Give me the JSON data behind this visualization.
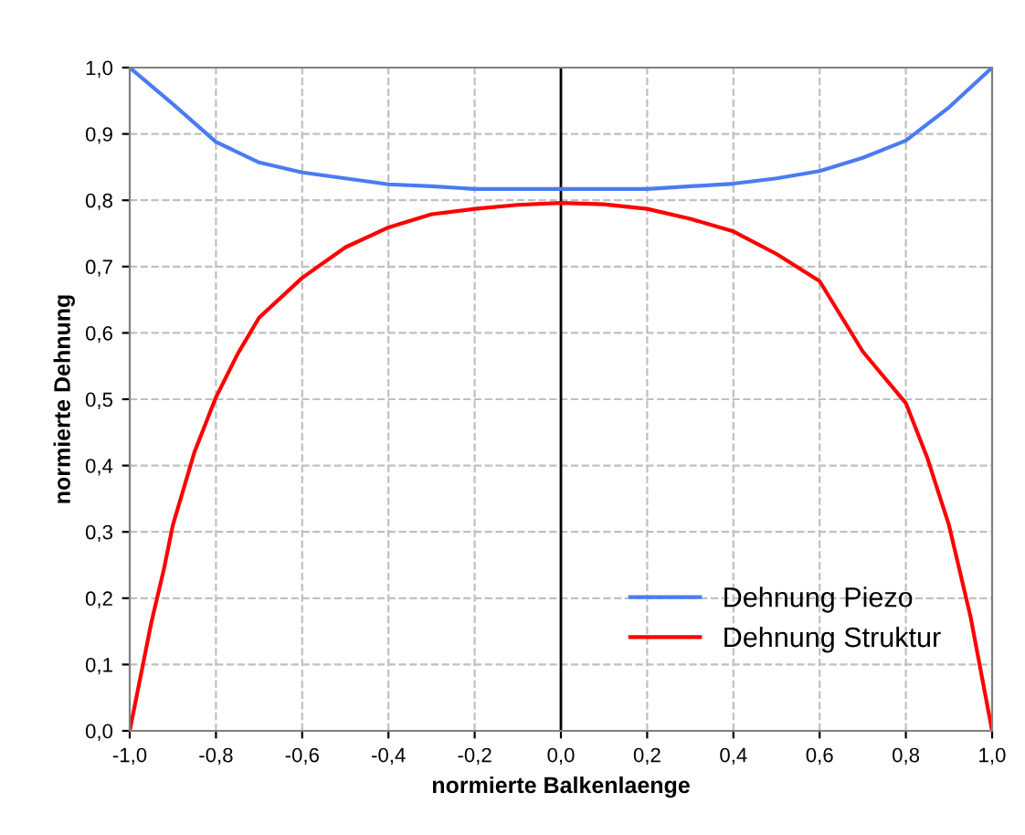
{
  "chart_data": {
    "type": "line",
    "xlabel": "normierte Balkenlaenge",
    "ylabel": "normierte Dehnung",
    "xlim": [
      -1,
      1
    ],
    "ylim": [
      0,
      1
    ],
    "xticks": [
      {
        "value": -1,
        "label": "-1,0"
      },
      {
        "value": -0.8,
        "label": "-0,8"
      },
      {
        "value": -0.6,
        "label": "-0,6"
      },
      {
        "value": -0.4,
        "label": "-0,4"
      },
      {
        "value": -0.2,
        "label": "-0,2"
      },
      {
        "value": 0,
        "label": "0,0"
      },
      {
        "value": 0.2,
        "label": "0,2"
      },
      {
        "value": 0.4,
        "label": "0,4"
      },
      {
        "value": 0.6,
        "label": "0,6"
      },
      {
        "value": 0.8,
        "label": "0,8"
      },
      {
        "value": 1,
        "label": "1,0"
      }
    ],
    "yticks": [
      {
        "value": 0,
        "label": "0,0"
      },
      {
        "value": 0.1,
        "label": "0,1"
      },
      {
        "value": 0.2,
        "label": "0,2"
      },
      {
        "value": 0.3,
        "label": "0,3"
      },
      {
        "value": 0.4,
        "label": "0,4"
      },
      {
        "value": 0.5,
        "label": "0,5"
      },
      {
        "value": 0.6,
        "label": "0,6"
      },
      {
        "value": 0.7,
        "label": "0,7"
      },
      {
        "value": 0.8,
        "label": "0,8"
      },
      {
        "value": 0.9,
        "label": "0,9"
      },
      {
        "value": 1,
        "label": "1,0"
      }
    ],
    "grid": true,
    "legend": "bottom right",
    "line_style": "solid",
    "marker": "none",
    "ref_lines": [
      {
        "axis": "x",
        "value": 0,
        "color": "#000000"
      }
    ],
    "series": [
      {
        "name": "Dehnung Piezo",
        "color": "#4a7cf0",
        "x": [
          -1,
          -0.9,
          -0.8,
          -0.7,
          -0.6,
          -0.5,
          -0.4,
          -0.3,
          -0.2,
          -0.1,
          0,
          0.2,
          0.4,
          0.5,
          0.6,
          0.7,
          0.8,
          0.9,
          1
        ],
        "values": [
          1.0,
          0.945,
          0.888,
          0.857,
          0.842,
          0.833,
          0.824,
          0.821,
          0.817,
          0.817,
          0.817,
          0.817,
          0.825,
          0.833,
          0.844,
          0.864,
          0.89,
          0.94,
          1.0
        ]
      },
      {
        "name": "Dehnung Struktur",
        "color": "#ff0000",
        "x": [
          -1,
          -0.95,
          -0.92,
          -0.9,
          -0.85,
          -0.8,
          -0.75,
          -0.7,
          -0.6,
          -0.5,
          -0.4,
          -0.3,
          -0.2,
          -0.1,
          0,
          0.1,
          0.2,
          0.3,
          0.4,
          0.5,
          0.6,
          0.7,
          0.8,
          0.85,
          0.9,
          0.95,
          1
        ],
        "values": [
          0,
          0.163,
          0.246,
          0.31,
          0.42,
          0.503,
          0.568,
          0.623,
          0.683,
          0.729,
          0.759,
          0.779,
          0.787,
          0.793,
          0.796,
          0.794,
          0.787,
          0.772,
          0.753,
          0.719,
          0.678,
          0.572,
          0.494,
          0.411,
          0.31,
          0.172,
          0
        ]
      }
    ]
  }
}
